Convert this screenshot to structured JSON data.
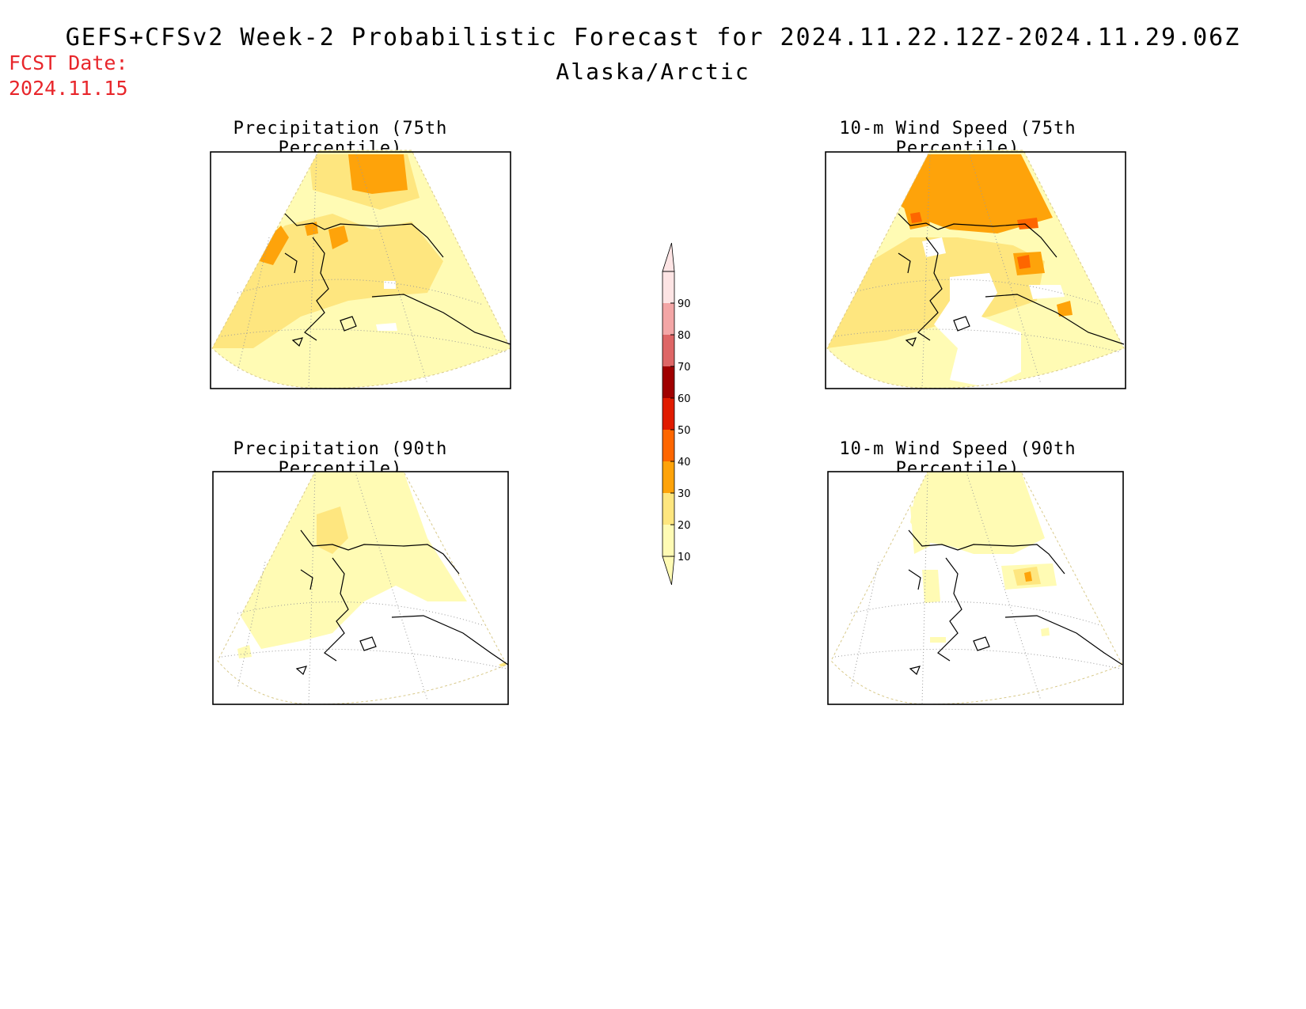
{
  "header": {
    "title": "GEFS+CFSv2 Week-2 Probabilistic Forecast for 2024.11.22.12Z-2024.11.29.06Z",
    "region": "Alaska/Arctic",
    "fcst_label": "FCST Date:",
    "fcst_date": "2024.11.15"
  },
  "panels": [
    {
      "title": "Precipitation (75th Percentile)"
    },
    {
      "title": "10-m Wind Speed (75th Percentile)"
    },
    {
      "title": "Precipitation (90th Percentile)"
    },
    {
      "title": "10-m Wind Speed (90th Percentile)"
    }
  ],
  "colorbar": {
    "levels": [
      "10",
      "20",
      "30",
      "40",
      "50",
      "60",
      "70",
      "80",
      "90"
    ],
    "colors": [
      "#fffbb4",
      "#fee67f",
      "#fea30a",
      "#fe6600",
      "#e01b00",
      "#a00000",
      "#de6666",
      "#f3a6a6",
      "#fde4e4"
    ]
  }
}
